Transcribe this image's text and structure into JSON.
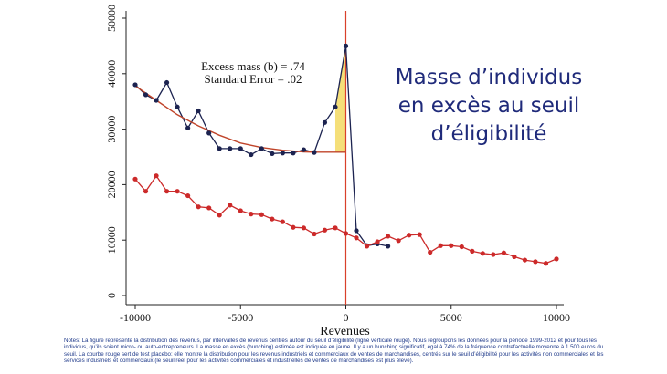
{
  "headline": [
    "Masse d’individus",
    "en excès au seuil",
    "d’éligibilité"
  ],
  "notes": "Notes: La figure représente la distribution des revenus, par intervalles de revenus centrés autour du seuil d’éligibilité (ligne verticale rouge). Nous regroupons les données pour la période 1999-2012 et pour tous les individus, qu’ils soient micro- ou auto-entrepreneurs. La masse en excès (bunching) estimée est indiquée en jaune. Il y a un bunching significatif, égal à 74% de la fréquence contrefactuelle moyenne à 1 500 euros du seuil. La courbe rouge sert de test placebo: elle montre la distribution pour les revenus industriels et commerciaux de ventes de marchandises, centrés sur le seuil d’éligibilité pour les activités non commerciales et les services industriels et commerciaux (le seuil réel pour les activités commerciales et industrielles de ventes de marchandises est plus élevé).",
  "chart_data": {
    "type": "line",
    "xlabel": "Revenues",
    "ylabel": "",
    "xlim": [
      -10000,
      10000
    ],
    "ylim": [
      0,
      50000
    ],
    "xticks": [
      -10000,
      -5000,
      0,
      5000,
      10000
    ],
    "xtick_labels": [
      "-10000",
      "-5000",
      "0",
      "5000",
      "10000"
    ],
    "yticks": [
      0,
      10000,
      20000,
      30000,
      40000,
      50000
    ],
    "ytick_labels": [
      "0",
      "10000",
      "20000",
      "30000",
      "40000",
      "50000"
    ],
    "threshold_x": 0,
    "annotations": [
      "Excess mass (b) = .74",
      "Standard Error = .02"
    ],
    "series": [
      {
        "role": "actual",
        "color": "#1c2350",
        "points": [
          [
            -10000,
            38000
          ],
          [
            -9500,
            36200
          ],
          [
            -9000,
            35200
          ],
          [
            -8500,
            38400
          ],
          [
            -8000,
            34000
          ],
          [
            -7500,
            30200
          ],
          [
            -7000,
            33300
          ],
          [
            -6500,
            29300
          ],
          [
            -6000,
            26500
          ],
          [
            -5500,
            26500
          ],
          [
            -5000,
            26500
          ],
          [
            -4500,
            25400
          ],
          [
            -4000,
            26500
          ],
          [
            -3500,
            25600
          ],
          [
            -3000,
            25700
          ],
          [
            -2500,
            25700
          ],
          [
            -2000,
            26300
          ],
          [
            -1500,
            25800
          ],
          [
            -1000,
            31200
          ],
          [
            -500,
            34000
          ],
          [
            0,
            45000
          ],
          [
            500,
            11700
          ],
          [
            1000,
            9000
          ],
          [
            1500,
            9300
          ],
          [
            2000,
            8900
          ]
        ]
      },
      {
        "role": "counterfactual",
        "color": "#c0442a",
        "points": [
          [
            -10000,
            37800
          ],
          [
            -9000,
            35200
          ],
          [
            -8000,
            32600
          ],
          [
            -7000,
            30600
          ],
          [
            -6000,
            28900
          ],
          [
            -5000,
            27500
          ],
          [
            -4000,
            26700
          ],
          [
            -3000,
            26200
          ],
          [
            -2000,
            25900
          ],
          [
            -1500,
            25850
          ],
          [
            0,
            25850
          ]
        ]
      },
      {
        "role": "placebo",
        "color": "#cc2a2a",
        "points": [
          [
            -10000,
            21000
          ],
          [
            -9500,
            18800
          ],
          [
            -9000,
            21600
          ],
          [
            -8500,
            18800
          ],
          [
            -8000,
            18800
          ],
          [
            -7500,
            18000
          ],
          [
            -7000,
            16000
          ],
          [
            -6500,
            15800
          ],
          [
            -6000,
            14500
          ],
          [
            -5500,
            16300
          ],
          [
            -5000,
            15300
          ],
          [
            -4500,
            14700
          ],
          [
            -4000,
            14600
          ],
          [
            -3500,
            13800
          ],
          [
            -3000,
            13300
          ],
          [
            -2500,
            12300
          ],
          [
            -2000,
            12200
          ],
          [
            -1500,
            11100
          ],
          [
            -1000,
            11800
          ],
          [
            -500,
            12200
          ],
          [
            0,
            11200
          ],
          [
            500,
            10400
          ],
          [
            1000,
            8900
          ],
          [
            1500,
            9700
          ],
          [
            2000,
            10700
          ],
          [
            2500,
            9900
          ],
          [
            3000,
            10900
          ],
          [
            3500,
            11000
          ],
          [
            4000,
            7800
          ],
          [
            4500,
            9000
          ],
          [
            5000,
            9000
          ],
          [
            5500,
            8800
          ],
          [
            6000,
            8000
          ],
          [
            6500,
            7600
          ],
          [
            7000,
            7400
          ],
          [
            7500,
            7700
          ],
          [
            8000,
            7000
          ],
          [
            8500,
            6400
          ],
          [
            9000,
            6100
          ],
          [
            9500,
            5800
          ],
          [
            10000,
            6600
          ]
        ]
      }
    ],
    "excess_area": {
      "color": "#f5df79",
      "x_range": [
        -500,
        0
      ],
      "base_y": 25850
    }
  }
}
